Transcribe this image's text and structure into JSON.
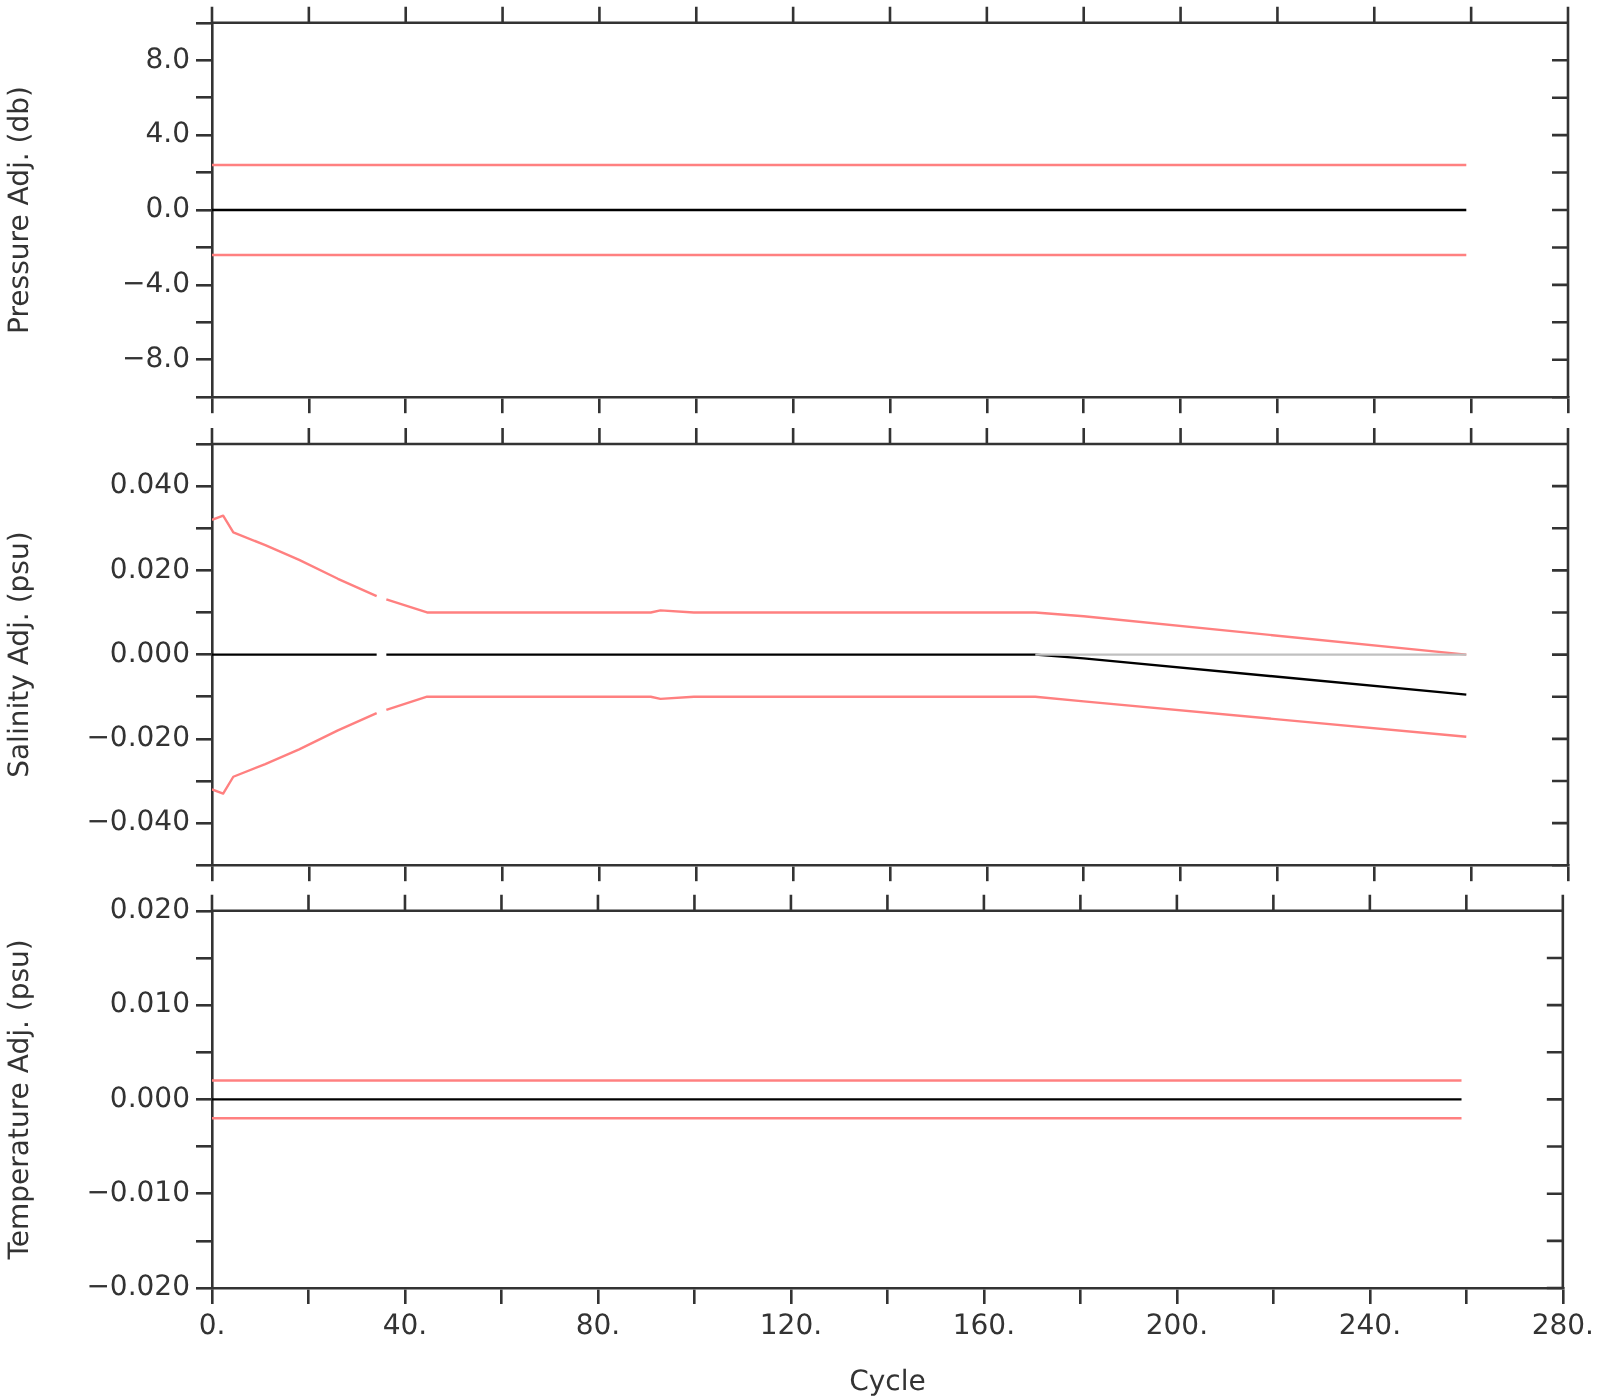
{
  "chart_data": [
    {
      "type": "line",
      "ylabel": "Pressure Adj. (db)",
      "xlim": [
        0,
        280
      ],
      "xticks": [
        0,
        20,
        40,
        60,
        80,
        100,
        120,
        140,
        160,
        180,
        200,
        220,
        240,
        260,
        280
      ],
      "ylim": [
        -10,
        10
      ],
      "yticks": [
        {
          "value": -10,
          "label": null
        },
        {
          "value": -8,
          "label": "−8.0"
        },
        {
          "value": -6,
          "label": null
        },
        {
          "value": -4,
          "label": "−4.0"
        },
        {
          "value": -2,
          "label": null
        },
        {
          "value": 0,
          "label": "0.0"
        },
        {
          "value": 2,
          "label": null
        },
        {
          "value": 4,
          "label": "4.0"
        },
        {
          "value": 6,
          "label": null
        },
        {
          "value": 8,
          "label": "8.0"
        },
        {
          "value": 10,
          "label": null
        }
      ],
      "tick_labels": "y",
      "series": [
        {
          "color": "#ff8080",
          "x": [
            0,
            259
          ],
          "values": [
            2.4,
            2.4
          ]
        },
        {
          "color": "#ff8080",
          "x": [
            0,
            259
          ],
          "values": [
            -2.4,
            -2.4
          ]
        },
        {
          "color": "#000000",
          "x": [
            0,
            259
          ],
          "values": [
            0,
            0
          ]
        }
      ]
    },
    {
      "type": "line",
      "ylabel": "Salinity Adj. (psu)",
      "xlim": [
        0,
        280
      ],
      "xticks": [
        0,
        20,
        40,
        60,
        80,
        100,
        120,
        140,
        160,
        180,
        200,
        220,
        240,
        260,
        280
      ],
      "ylim": [
        -0.05,
        0.05
      ],
      "yticks": [
        {
          "value": -0.05,
          "label": null
        },
        {
          "value": -0.04,
          "label": "−0.040"
        },
        {
          "value": -0.03,
          "label": null
        },
        {
          "value": -0.02,
          "label": "−0.020"
        },
        {
          "value": -0.01,
          "label": null
        },
        {
          "value": 0,
          "label": "0.000"
        },
        {
          "value": 0.01,
          "label": null
        },
        {
          "value": 0.02,
          "label": "0.020"
        },
        {
          "value": 0.03,
          "label": null
        },
        {
          "value": 0.04,
          "label": "0.040"
        },
        {
          "value": 0.05,
          "label": null
        }
      ],
      "tick_labels": "y",
      "series": [
        {
          "color": "#c0c0c0",
          "x": [
            170,
            259
          ],
          "values": [
            0,
            0
          ]
        },
        {
          "color": "#ff8080",
          "x": [
            0,
            2.3,
            4.4,
            11,
            18,
            26,
            34,
            35,
            36,
            44.4,
            90.6,
            92.6,
            99.5,
            170,
            180,
            259
          ],
          "values": [
            0.032,
            0.033,
            0.029,
            0.026,
            0.0225,
            0.018,
            0.0139,
            null,
            0.0131,
            0.01,
            0.01,
            0.0105,
            0.01,
            0.01,
            0.0091,
            0.0
          ]
        },
        {
          "color": "#ff8080",
          "x": [
            0,
            2.3,
            4.4,
            11,
            18,
            26,
            34,
            35,
            36,
            44.4,
            90.6,
            92.6,
            99.5,
            170,
            180,
            259
          ],
          "values": [
            -0.032,
            -0.033,
            -0.029,
            -0.026,
            -0.0225,
            -0.018,
            -0.0139,
            null,
            -0.0131,
            -0.01,
            -0.01,
            -0.0105,
            -0.01,
            -0.01,
            -0.0111,
            -0.0195
          ]
        },
        {
          "color": "#000000",
          "x": [
            0,
            34,
            35,
            36,
            170,
            180,
            259
          ],
          "values": [
            0,
            0,
            null,
            0,
            0,
            -0.0009,
            -0.0095
          ]
        }
      ]
    },
    {
      "type": "line",
      "ylabel": "Temperature Adj. (psu)",
      "xlabel": "Cycle",
      "xlim": [
        0,
        280
      ],
      "xticks": [
        {
          "value": 0,
          "label": "0."
        },
        {
          "value": 20,
          "label": null
        },
        {
          "value": 40,
          "label": "40."
        },
        {
          "value": 60,
          "label": null
        },
        {
          "value": 80,
          "label": "80."
        },
        {
          "value": 100,
          "label": null
        },
        {
          "value": 120,
          "label": "120."
        },
        {
          "value": 140,
          "label": null
        },
        {
          "value": 160,
          "label": "160."
        },
        {
          "value": 180,
          "label": null
        },
        {
          "value": 200,
          "label": "200."
        },
        {
          "value": 220,
          "label": null
        },
        {
          "value": 240,
          "label": "240."
        },
        {
          "value": 260,
          "label": null
        },
        {
          "value": 280,
          "label": "280."
        }
      ],
      "ylim": [
        -0.02,
        0.02
      ],
      "yticks": [
        {
          "value": -0.02,
          "label": "−0.020"
        },
        {
          "value": -0.015,
          "label": null
        },
        {
          "value": -0.01,
          "label": "−0.010"
        },
        {
          "value": -0.005,
          "label": null
        },
        {
          "value": 0,
          "label": "0.000"
        },
        {
          "value": 0.005,
          "label": null
        },
        {
          "value": 0.01,
          "label": "0.010"
        },
        {
          "value": 0.015,
          "label": null
        },
        {
          "value": 0.02,
          "label": "0.020"
        }
      ],
      "series": [
        {
          "color": "#ff8080",
          "x": [
            0,
            259
          ],
          "values": [
            0.002,
            0.002
          ]
        },
        {
          "color": "#ff8080",
          "x": [
            0,
            259
          ],
          "values": [
            -0.002,
            -0.002
          ]
        },
        {
          "color": "#000000",
          "x": [
            0,
            259
          ],
          "values": [
            0,
            0
          ]
        }
      ]
    }
  ]
}
